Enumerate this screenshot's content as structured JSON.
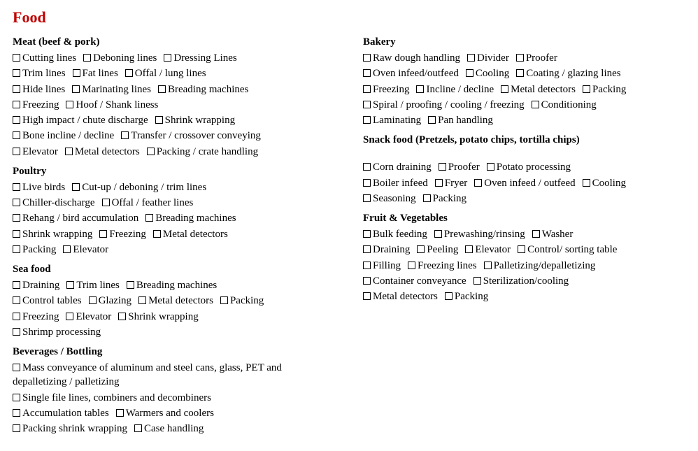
{
  "title": "Food",
  "columns": [
    {
      "sections": [
        {
          "heading": "Meat (beef & pork)",
          "lines": [
            [
              "Cutting lines",
              "Deboning lines",
              "Dressing Lines"
            ],
            [
              "Trim lines",
              "Fat lines",
              "Offal / lung lines"
            ],
            [
              "Hide lines",
              "Marinating lines",
              "Breading machines"
            ],
            [
              "Freezing",
              "Hoof / Shank liness"
            ],
            [
              "High impact / chute discharge",
              "Shrink wrapping"
            ],
            [
              "Bone incline / decline",
              "Transfer / crossover conveying"
            ],
            [
              "Elevator",
              "Metal detectors",
              "Packing / crate handling"
            ]
          ]
        },
        {
          "heading": "Poultry",
          "lines": [
            [
              "Live birds",
              "Cut-up / deboning / trim lines"
            ],
            [
              "Chiller-discharge",
              "Offal / feather lines"
            ],
            [
              "Rehang / bird accumulation",
              "Breading machines"
            ],
            [
              "Shrink wrapping",
              "Freezing",
              "Metal detectors"
            ],
            [
              "Packing",
              "Elevator"
            ]
          ]
        },
        {
          "heading": "Sea food",
          "lines": [
            [
              "Draining",
              "Trim lines",
              "Breading machines"
            ],
            [
              "Control tables",
              "Glazing",
              "Metal detectors",
              "Packing"
            ],
            [
              "Freezing",
              "Elevator",
              "Shrink wrapping"
            ],
            [
              "Shrimp processing"
            ]
          ]
        },
        {
          "heading": "Beverages / Bottling",
          "lines": [
            [
              {
                "label": "Mass conveyance of aluminum and steel cans, glass, PET and depalletizing / palletizing",
                "wrap": true
              }
            ],
            [
              {
                "label": "Single file lines, combiners and decombiners",
                "wrap": true
              }
            ],
            [
              "Accumulation tables",
              "Warmers and coolers"
            ],
            [
              "Packing shrink wrapping",
              "Case handling"
            ]
          ]
        }
      ]
    },
    {
      "sections": [
        {
          "heading": "Bakery",
          "lines": [
            [
              "Raw dough handling",
              "Divider",
              "Proofer"
            ],
            [
              "Oven infeed/outfeed",
              "Cooling",
              "Coating / glazing lines"
            ],
            [
              "Freezing",
              "Incline / decline",
              "Metal detectors",
              "Packing"
            ],
            [
              "Spiral / proofing / cooling / freezing",
              "Conditioning"
            ],
            [
              "Laminating",
              "Pan handling"
            ]
          ]
        },
        {
          "heading": "Snack food (Pretzels, potato chips, tortilla chips)",
          "gap_before_lines": true,
          "lines": [
            [
              "Corn draining",
              "Proofer",
              "Potato processing"
            ],
            [
              "Boiler infeed",
              "Fryer",
              "Oven infeed / outfeed",
              "Cooling"
            ],
            [
              "Seasoning",
              "Packing"
            ]
          ]
        },
        {
          "heading": "Fruit & Vegetables",
          "lines": [
            [
              "Bulk feeding",
              "Prewashing/rinsing",
              "Washer"
            ],
            [
              "Draining",
              "Peeling",
              "Elevator",
              "Control/ sorting table"
            ],
            [
              "Filling",
              "Freezing lines",
              "Palletizing/depalletizing"
            ],
            [
              "Container conveyance",
              "Sterilization/cooling"
            ],
            [
              "Metal detectors",
              "Packing"
            ]
          ]
        }
      ]
    }
  ]
}
